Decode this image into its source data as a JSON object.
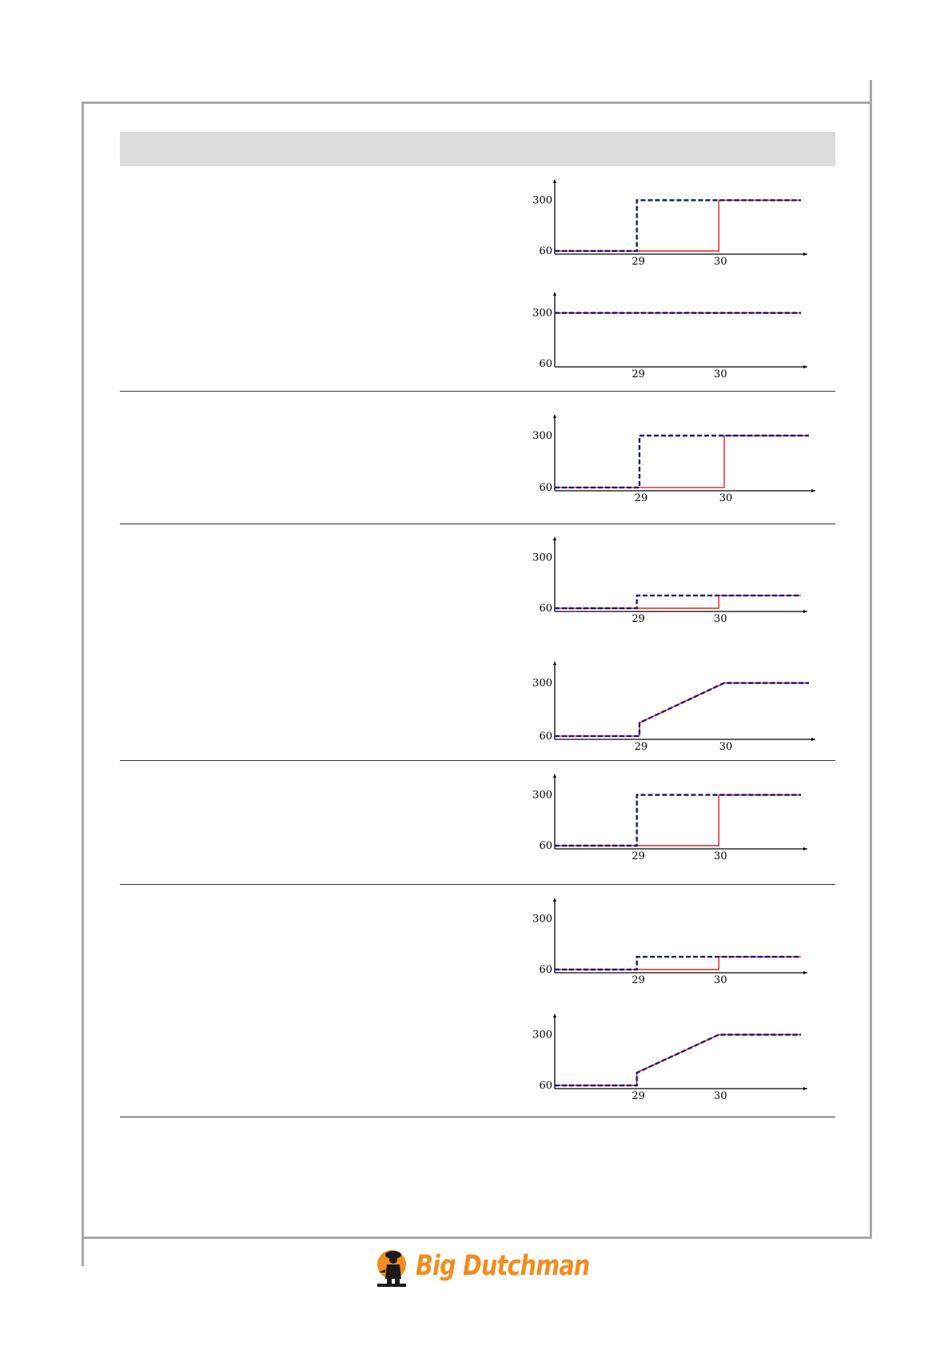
{
  "header": {
    "title": ""
  },
  "brand": {
    "name": "Big Dutchman",
    "color": "#f28c1e"
  },
  "colors": {
    "dashed": "#1a1a7a",
    "solid": "#e02020",
    "axis": "#000000"
  },
  "chart_data": [
    {
      "type": "line",
      "x": [
        28,
        29,
        29,
        30,
        30,
        31
      ],
      "yticks": [
        60,
        300
      ],
      "xticks": [
        29,
        30
      ],
      "ylim": [
        45,
        385
      ],
      "xlim": [
        28.0,
        31.0
      ],
      "series": [
        {
          "style": "dashed",
          "values": [
            60,
            60,
            300,
            300,
            300,
            300
          ]
        },
        {
          "style": "solid",
          "values": [
            60,
            60,
            60,
            60,
            300,
            300
          ]
        }
      ]
    },
    {
      "type": "line",
      "x": [
        28,
        31
      ],
      "yticks": [
        60,
        300
      ],
      "xticks": [
        29,
        30
      ],
      "ylim": [
        45,
        385
      ],
      "xlim": [
        28.0,
        31.0
      ],
      "series": [
        {
          "style": "dashed",
          "values": [
            300,
            300
          ]
        },
        {
          "style": "solid",
          "values": [
            300,
            300
          ]
        }
      ]
    },
    {
      "type": "line",
      "x": [
        28,
        29,
        29,
        30,
        30,
        31
      ],
      "yticks": [
        60,
        300
      ],
      "xticks": [
        29,
        30
      ],
      "ylim": [
        45,
        385
      ],
      "xlim": [
        28.0,
        31.0
      ],
      "series": [
        {
          "style": "dashed",
          "values": [
            60,
            60,
            300,
            300,
            300,
            300
          ]
        },
        {
          "style": "solid",
          "values": [
            60,
            60,
            60,
            60,
            300,
            300
          ]
        }
      ]
    },
    {
      "type": "line",
      "x": [
        28,
        29,
        29,
        30,
        30,
        31
      ],
      "yticks": [
        60,
        300
      ],
      "xticks": [
        29,
        30
      ],
      "ylim": [
        45,
        385
      ],
      "xlim": [
        28.0,
        31.0
      ],
      "series": [
        {
          "style": "dashed",
          "values": [
            60,
            60,
            120,
            120,
            120,
            120
          ]
        },
        {
          "style": "solid",
          "values": [
            60,
            60,
            60,
            60,
            120,
            120
          ]
        }
      ]
    },
    {
      "type": "line",
      "x": [
        28,
        29,
        29,
        30,
        31
      ],
      "yticks": [
        60,
        300
      ],
      "xticks": [
        29,
        30
      ],
      "ylim": [
        45,
        385
      ],
      "xlim": [
        28.0,
        31.0
      ],
      "series": [
        {
          "style": "dashed",
          "values": [
            60,
            60,
            120,
            300,
            300
          ]
        },
        {
          "style": "solid",
          "values": [
            60,
            60,
            120,
            300,
            300
          ]
        }
      ]
    },
    {
      "type": "line",
      "x": [
        28,
        29,
        29,
        30,
        30,
        31
      ],
      "yticks": [
        60,
        300
      ],
      "xticks": [
        29,
        30
      ],
      "ylim": [
        45,
        385
      ],
      "xlim": [
        28.0,
        31.0
      ],
      "series": [
        {
          "style": "dashed",
          "values": [
            60,
            60,
            300,
            300,
            300,
            300
          ]
        },
        {
          "style": "solid",
          "values": [
            60,
            60,
            60,
            60,
            300,
            300
          ]
        }
      ]
    },
    {
      "type": "line",
      "x": [
        28,
        29,
        29,
        30,
        30,
        31
      ],
      "yticks": [
        60,
        300
      ],
      "xticks": [
        29,
        30
      ],
      "ylim": [
        45,
        385
      ],
      "xlim": [
        28.0,
        31.0
      ],
      "series": [
        {
          "style": "dashed",
          "values": [
            60,
            60,
            120,
            120,
            120,
            120
          ]
        },
        {
          "style": "solid",
          "values": [
            60,
            60,
            60,
            60,
            120,
            120
          ]
        }
      ]
    },
    {
      "type": "line",
      "x": [
        28,
        29,
        29,
        30,
        31
      ],
      "yticks": [
        60,
        300
      ],
      "xticks": [
        29,
        30
      ],
      "ylim": [
        45,
        385
      ],
      "xlim": [
        28.0,
        31.0
      ],
      "series": [
        {
          "style": "dashed",
          "values": [
            60,
            60,
            120,
            300,
            300
          ]
        },
        {
          "style": "solid",
          "values": [
            60,
            60,
            120,
            300,
            300
          ]
        }
      ]
    }
  ]
}
